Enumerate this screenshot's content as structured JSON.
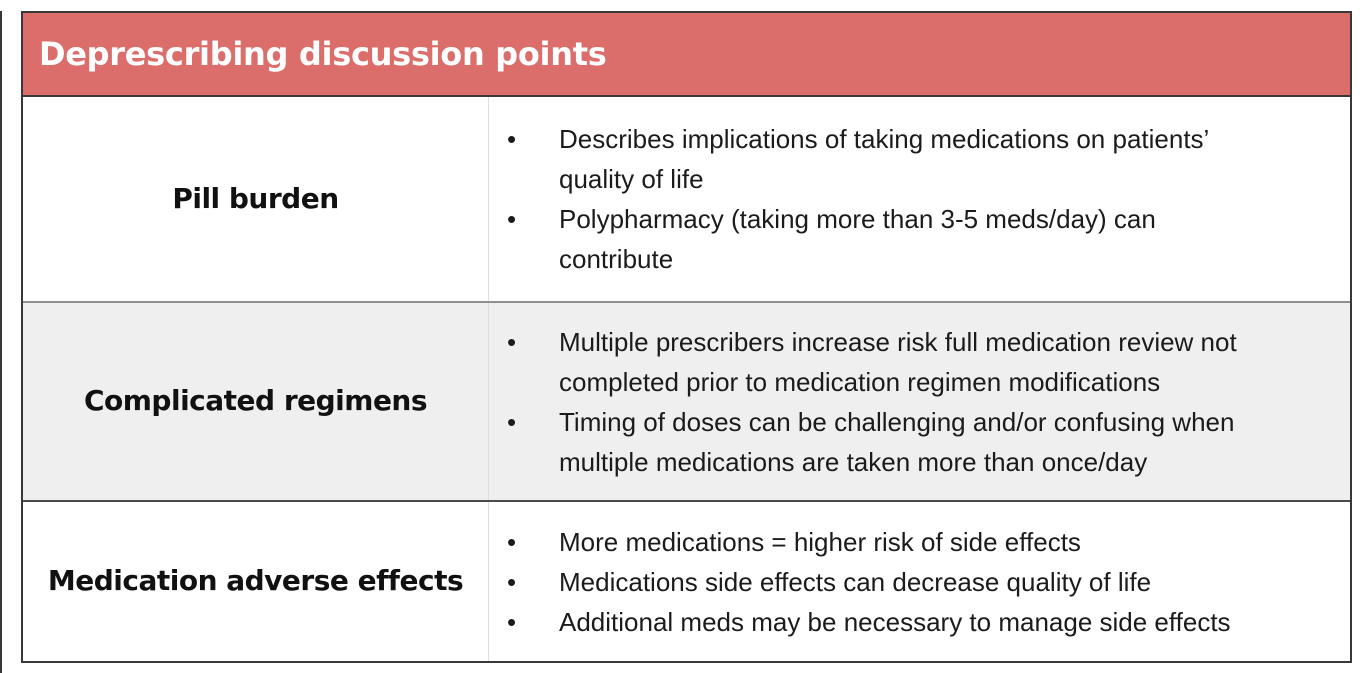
{
  "table": {
    "title": "Deprescribing discussion points",
    "bullet_glyph": "•",
    "colors": {
      "header_bg": "#DB6E6B",
      "header_text": "#FFFFFF",
      "row_alt_bg": "#F0EFEF",
      "border_dark": "#383838",
      "separator_gray": "#8F8F8F",
      "separator_dark": "#4A4A4A",
      "divider_light": "#DEDEDE",
      "text": "#1B1B1B"
    },
    "rows": [
      {
        "label": "Pill burden",
        "bullets": [
          {
            "lines": [
              "Describes implications of taking medications on patients’",
              "quality of life"
            ]
          },
          {
            "lines": [
              "Polypharmacy (taking more than 3-5 meds/day) can",
              "contribute"
            ]
          }
        ]
      },
      {
        "label": "Complicated regimens",
        "bullets": [
          {
            "lines": [
              "Multiple prescribers increase risk full medication review not",
              "completed prior to medication regimen modifications"
            ]
          },
          {
            "lines": [
              "Timing of doses can be challenging and/or confusing when",
              "multiple medications are taken more than once/day"
            ]
          }
        ]
      },
      {
        "label": "Medication adverse effects",
        "bullets": [
          {
            "lines": [
              "More medications = higher risk of side effects"
            ]
          },
          {
            "lines": [
              "Medications side effects can decrease quality of life"
            ]
          },
          {
            "lines": [
              "Additional meds may be necessary to manage side effects"
            ]
          }
        ]
      }
    ]
  }
}
